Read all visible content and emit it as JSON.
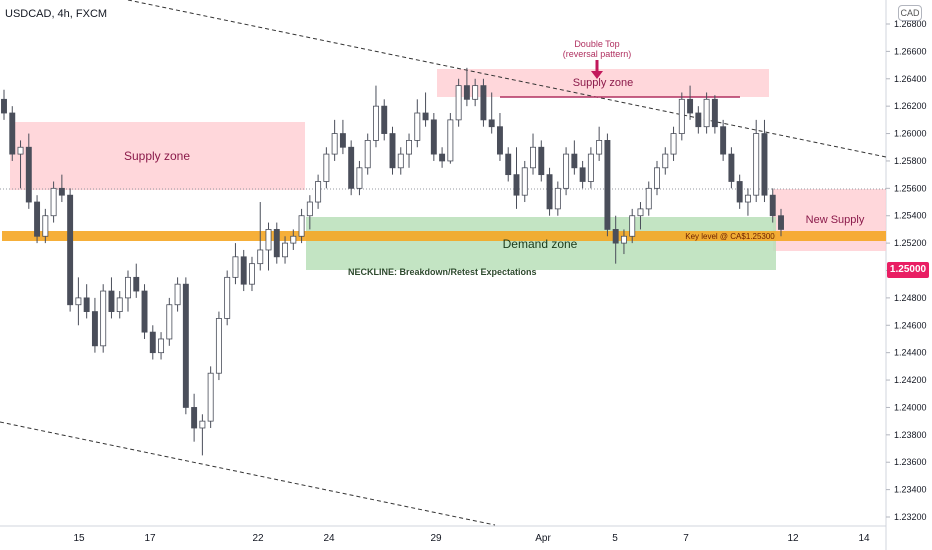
{
  "header": {
    "symbol": "USDCAD, 4h, FXCM",
    "currency": "CAD"
  },
  "price_label": "1.25000",
  "colors": {
    "bull_candle": "#ffffff",
    "bear_candle": "#4a4e5a",
    "supply_zone": "#ffcdd2",
    "demand_zone": "#b9dfb9",
    "key_level": "#f5a623",
    "price_tag": "#e91e63"
  },
  "annotations": {
    "supply_left": "Supply zone",
    "supply_top": "Supply zone",
    "double_top_1": "Double Top",
    "double_top_2": "(reversal pattern)",
    "new_supply": "New Supply",
    "demand": "Demand zone",
    "key_level": "Key level @ CA$1.25300",
    "neckline": "NECKLINE: Breakdown/Retest Expectations"
  },
  "chart_data": {
    "type": "candlestick",
    "title": "USDCAD, 4h, FXCM",
    "ylim": [
      1.231,
      1.269
    ],
    "y_ticks": [
      "1.26800",
      "1.26600",
      "1.26400",
      "1.26200",
      "1.26000",
      "1.25800",
      "1.25600",
      "1.25400",
      "1.25200",
      "1.25000",
      "1.24800",
      "1.24600",
      "1.24400",
      "1.24200",
      "1.24000",
      "1.23800",
      "1.23600",
      "1.23400",
      "1.23200"
    ],
    "x_ticks": [
      "15",
      "17",
      "22",
      "24",
      "29",
      "Apr",
      "5",
      "7",
      "12",
      "14"
    ],
    "grid": false,
    "ohlc": [
      [
        1.2625,
        1.2632,
        1.261,
        1.2615
      ],
      [
        1.2615,
        1.262,
        1.258,
        1.2585
      ],
      [
        1.2585,
        1.2595,
        1.256,
        1.259
      ],
      [
        1.259,
        1.26,
        1.2545,
        1.255
      ],
      [
        1.255,
        1.2555,
        1.252,
        1.2525
      ],
      [
        1.2525,
        1.2545,
        1.252,
        1.254
      ],
      [
        1.254,
        1.2565,
        1.2535,
        1.256
      ],
      [
        1.256,
        1.257,
        1.255,
        1.2555
      ],
      [
        1.2555,
        1.256,
        1.247,
        1.2475
      ],
      [
        1.2475,
        1.2495,
        1.246,
        1.248
      ],
      [
        1.248,
        1.249,
        1.2465,
        1.247
      ],
      [
        1.247,
        1.248,
        1.244,
        1.2445
      ],
      [
        1.2445,
        1.249,
        1.244,
        1.2485
      ],
      [
        1.2485,
        1.2495,
        1.2465,
        1.247
      ],
      [
        1.247,
        1.2485,
        1.2465,
        1.248
      ],
      [
        1.248,
        1.25,
        1.247,
        1.2495
      ],
      [
        1.2495,
        1.2505,
        1.248,
        1.2485
      ],
      [
        1.2485,
        1.249,
        1.245,
        1.2455
      ],
      [
        1.2455,
        1.246,
        1.2435,
        1.244
      ],
      [
        1.244,
        1.2455,
        1.2435,
        1.245
      ],
      [
        1.245,
        1.248,
        1.2445,
        1.2475
      ],
      [
        1.2475,
        1.2495,
        1.247,
        1.249
      ],
      [
        1.249,
        1.2495,
        1.2395,
        1.24
      ],
      [
        1.24,
        1.241,
        1.2375,
        1.2385
      ],
      [
        1.2385,
        1.2395,
        1.2365,
        1.239
      ],
      [
        1.239,
        1.243,
        1.2385,
        1.2425
      ],
      [
        1.2425,
        1.247,
        1.242,
        1.2465
      ],
      [
        1.2465,
        1.25,
        1.246,
        1.2495
      ],
      [
        1.2495,
        1.252,
        1.249,
        1.251
      ],
      [
        1.251,
        1.2515,
        1.2485,
        1.249
      ],
      [
        1.249,
        1.251,
        1.2485,
        1.2505
      ],
      [
        1.2505,
        1.255,
        1.25,
        1.2515
      ],
      [
        1.2515,
        1.2535,
        1.25,
        1.253
      ],
      [
        1.253,
        1.2535,
        1.2505,
        1.251
      ],
      [
        1.251,
        1.2525,
        1.2505,
        1.252
      ],
      [
        1.252,
        1.253,
        1.2515,
        1.2525
      ],
      [
        1.2525,
        1.2545,
        1.252,
        1.254
      ],
      [
        1.254,
        1.2555,
        1.253,
        1.255
      ],
      [
        1.255,
        1.257,
        1.2545,
        1.2565
      ],
      [
        1.2565,
        1.259,
        1.256,
        1.2585
      ],
      [
        1.2585,
        1.261,
        1.258,
        1.26
      ],
      [
        1.26,
        1.261,
        1.2585,
        1.259
      ],
      [
        1.259,
        1.2595,
        1.2555,
        1.256
      ],
      [
        1.256,
        1.258,
        1.2555,
        1.2575
      ],
      [
        1.2575,
        1.26,
        1.257,
        1.2595
      ],
      [
        1.2595,
        1.2635,
        1.259,
        1.262
      ],
      [
        1.262,
        1.2625,
        1.2595,
        1.26
      ],
      [
        1.26,
        1.2605,
        1.257,
        1.2575
      ],
      [
        1.2575,
        1.259,
        1.257,
        1.2585
      ],
      [
        1.2585,
        1.26,
        1.2575,
        1.2595
      ],
      [
        1.2595,
        1.2625,
        1.259,
        1.2615
      ],
      [
        1.2615,
        1.263,
        1.2605,
        1.261
      ],
      [
        1.261,
        1.2615,
        1.258,
        1.2585
      ],
      [
        1.2585,
        1.259,
        1.2575,
        1.258
      ],
      [
        1.258,
        1.2615,
        1.2578,
        1.261
      ],
      [
        1.261,
        1.264,
        1.2605,
        1.2635
      ],
      [
        1.2635,
        1.2648,
        1.262,
        1.2625
      ],
      [
        1.2625,
        1.264,
        1.262,
        1.2635
      ],
      [
        1.2635,
        1.264,
        1.2605,
        1.261
      ],
      [
        1.261,
        1.263,
        1.26,
        1.2605
      ],
      [
        1.2605,
        1.2615,
        1.258,
        1.2585
      ],
      [
        1.2585,
        1.259,
        1.2565,
        1.257
      ],
      [
        1.257,
        1.259,
        1.2545,
        1.2555
      ],
      [
        1.2555,
        1.258,
        1.255,
        1.2575
      ],
      [
        1.2575,
        1.26,
        1.257,
        1.259
      ],
      [
        1.259,
        1.2595,
        1.2565,
        1.257
      ],
      [
        1.257,
        1.2575,
        1.254,
        1.2545
      ],
      [
        1.2545,
        1.2565,
        1.254,
        1.256
      ],
      [
        1.256,
        1.259,
        1.2555,
        1.2585
      ],
      [
        1.2585,
        1.2595,
        1.257,
        1.2575
      ],
      [
        1.2575,
        1.258,
        1.256,
        1.2565
      ],
      [
        1.2565,
        1.259,
        1.256,
        1.2585
      ],
      [
        1.2585,
        1.2605,
        1.258,
        1.2595
      ],
      [
        1.2595,
        1.26,
        1.2525,
        1.253
      ],
      [
        1.253,
        1.254,
        1.2505,
        1.252
      ],
      [
        1.252,
        1.253,
        1.2512,
        1.2525
      ],
      [
        1.2525,
        1.2545,
        1.252,
        1.254
      ],
      [
        1.254,
        1.255,
        1.253,
        1.2545
      ],
      [
        1.2545,
        1.2565,
        1.254,
        1.256
      ],
      [
        1.256,
        1.258,
        1.2555,
        1.2575
      ],
      [
        1.2575,
        1.259,
        1.257,
        1.2585
      ],
      [
        1.2585,
        1.2605,
        1.258,
        1.26
      ],
      [
        1.26,
        1.263,
        1.2595,
        1.2625
      ],
      [
        1.2625,
        1.2635,
        1.261,
        1.2615
      ],
      [
        1.2615,
        1.262,
        1.26,
        1.2605
      ],
      [
        1.2605,
        1.263,
        1.26,
        1.2625
      ],
      [
        1.2625,
        1.2628,
        1.26,
        1.2605
      ],
      [
        1.2605,
        1.261,
        1.258,
        1.2585
      ],
      [
        1.2585,
        1.259,
        1.256,
        1.2565
      ],
      [
        1.2565,
        1.257,
        1.2545,
        1.255
      ],
      [
        1.255,
        1.256,
        1.254,
        1.2555
      ],
      [
        1.2555,
        1.261,
        1.255,
        1.26
      ],
      [
        1.26,
        1.261,
        1.255,
        1.2555
      ],
      [
        1.2555,
        1.256,
        1.2535,
        1.254
      ],
      [
        1.254,
        1.2545,
        1.2525,
        1.253
      ]
    ]
  }
}
